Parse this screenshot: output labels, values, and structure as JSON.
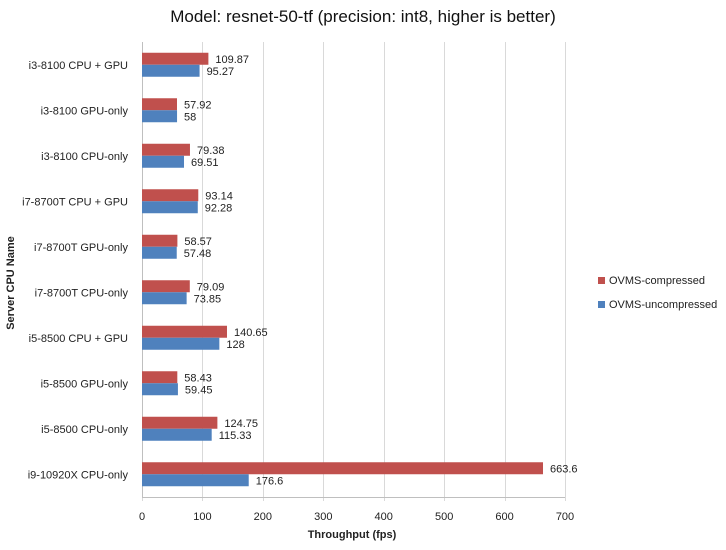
{
  "chart_data": {
    "type": "bar",
    "orientation": "horizontal",
    "title": "Model: resnet-50-tf (precision: int8, higher is better)",
    "xlabel": "Throughput (fps)",
    "ylabel": "Server CPU Name",
    "xlim": [
      0,
      700
    ],
    "xticks": [
      0,
      100,
      200,
      300,
      400,
      500,
      600,
      700
    ],
    "grid": true,
    "legend_position": "right",
    "categories": [
      "i3-8100 CPU + GPU",
      "i3-8100 GPU-only",
      "i3-8100 CPU-only",
      "i7-8700T CPU + GPU",
      "i7-8700T GPU-only",
      "i7-8700T CPU-only",
      "i5-8500 CPU + GPU",
      "i5-8500 GPU-only",
      "i5-8500 CPU-only",
      "i9-10920X CPU-only"
    ],
    "series": [
      {
        "name": "OVMS-compressed",
        "color": "#c0504d",
        "values": [
          109.87,
          57.92,
          79.38,
          93.14,
          58.57,
          79.09,
          140.65,
          58.43,
          124.75,
          663.6
        ],
        "labels": [
          "109.87",
          "57.92",
          "79.38",
          "93.14",
          "58.57",
          "79.09",
          "140.65",
          "58.43",
          "124.75",
          "663.6"
        ]
      },
      {
        "name": "OVMS-uncompressed",
        "color": "#4f81bd",
        "values": [
          95.27,
          58,
          69.51,
          92.28,
          57.48,
          73.85,
          128,
          59.45,
          115.33,
          176.6
        ],
        "labels": [
          "95.27",
          "58",
          "69.51",
          "92.28",
          "57.48",
          "73.85",
          "128",
          "59.45",
          "115.33",
          "176.6"
        ]
      }
    ]
  }
}
